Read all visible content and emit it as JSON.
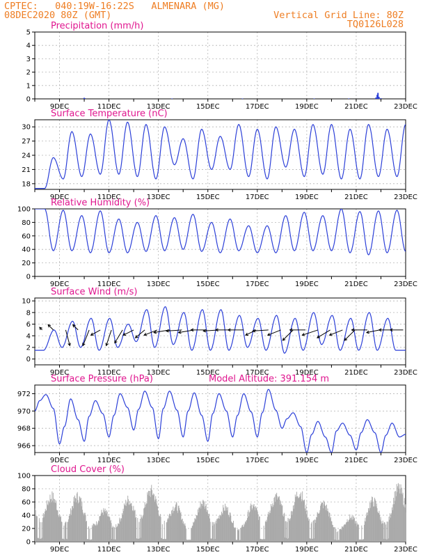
{
  "header": {
    "line1_left": "CPTEC:   040:19W-16:22S   ALMENARA (MG)",
    "line2_left": "08DEC2020 80Z (GMT)",
    "line1_right": "Vertical Grid Line: 80Z",
    "line2_right": "TQ0126L028"
  },
  "colors": {
    "header": "#ee7d22",
    "panel_title": "#e0168f",
    "series": "#2b3fd8",
    "cloud": "#a9a9a9",
    "arrows": "#000000"
  },
  "chart_data": [
    {
      "type": "bar",
      "id": "precip",
      "title": "Precipitation (mm/h)",
      "ylim": [
        0,
        5
      ],
      "yticks": [
        0,
        1,
        2,
        3,
        4,
        5
      ],
      "xlim": [
        8.0,
        23.0
      ],
      "xtick_days": [
        9,
        11,
        13,
        15,
        17,
        19,
        21,
        23
      ],
      "xtick_labels": [
        "9DEC",
        "11DEC",
        "13DEC",
        "15DEC",
        "17DEC",
        "19DEC",
        "21DEC",
        "23DEC"
      ],
      "grid": true,
      "x": [
        10.0,
        10.02,
        13.55,
        16.4,
        19.3,
        20.7,
        21.8,
        21.85,
        21.88,
        21.92,
        22.0
      ],
      "values": [
        0.08,
        0.05,
        0.03,
        0.03,
        0.03,
        0.03,
        0.1,
        0.3,
        0.45,
        0.15,
        0.05
      ]
    },
    {
      "type": "line",
      "id": "temperature",
      "title": "Surface Temperature (nC)",
      "ylim": [
        16.8,
        31.5
      ],
      "yticks": [
        18,
        21,
        24,
        27,
        30
      ],
      "xlim": [
        8.0,
        23.0
      ],
      "xtick_days": [
        9,
        11,
        13,
        15,
        17,
        19,
        21,
        23
      ],
      "xtick_labels": [
        "9DEC",
        "11DEC",
        "13DEC",
        "15DEC",
        "17DEC",
        "19DEC",
        "21DEC",
        "23DEC"
      ],
      "grid": true,
      "daily_max": [
        23.5,
        29,
        28.5,
        31.5,
        31,
        30.5,
        30,
        27.5,
        29.5,
        28,
        30.5,
        29.5,
        30,
        29.5,
        30.5,
        30.5,
        29.5,
        30.5,
        29.5,
        30.5,
        29
      ],
      "daily_min": [
        17,
        19,
        19.5,
        20,
        20,
        19.5,
        19,
        22,
        19,
        21,
        21,
        19.5,
        19,
        21.5,
        19.5,
        20,
        19,
        19,
        19.5,
        19.5,
        20
      ]
    },
    {
      "type": "line",
      "id": "humidity",
      "title": "Relative Humidity (%)",
      "ylim": [
        0,
        100
      ],
      "yticks": [
        0,
        20,
        40,
        60,
        80,
        100
      ],
      "xlim": [
        8.0,
        23.0
      ],
      "xtick_days": [
        9,
        11,
        13,
        15,
        17,
        19,
        21,
        23
      ],
      "xtick_labels": [
        "9DEC",
        "11DEC",
        "13DEC",
        "15DEC",
        "17DEC",
        "19DEC",
        "21DEC",
        "23DEC"
      ],
      "grid": true,
      "daily_max": [
        100,
        98,
        90,
        97,
        85,
        80,
        90,
        87,
        92,
        80,
        85,
        75,
        75,
        90,
        95,
        90,
        100,
        96,
        97,
        98,
        99
      ],
      "daily_min": [
        38,
        38,
        35,
        35,
        35,
        37,
        38,
        40,
        37,
        35,
        38,
        35,
        35,
        38,
        38,
        38,
        35,
        32,
        35,
        37,
        35
      ]
    },
    {
      "type": "line",
      "id": "wind",
      "title": "Surface Wind (m/s)",
      "ylim": [
        -1,
        10.5
      ],
      "yticks": [
        0,
        2,
        4,
        6,
        8,
        10
      ],
      "xlim": [
        8.0,
        23.0
      ],
      "xtick_days": [
        9,
        11,
        13,
        15,
        17,
        19,
        21,
        23
      ],
      "xtick_labels": [
        "9DEC",
        "11DEC",
        "13DEC",
        "15DEC",
        "17DEC",
        "19DEC",
        "21DEC",
        "23DEC"
      ],
      "grid": true,
      "daily_max": [
        5,
        6.5,
        7,
        7,
        6,
        8.5,
        9,
        8,
        8.5,
        8.5,
        7.5,
        7,
        7.5,
        7,
        8,
        7.5,
        7,
        8,
        7,
        8,
        7
      ],
      "daily_min": [
        1.5,
        2,
        2,
        1.5,
        2,
        3,
        2,
        2.5,
        1.5,
        1.5,
        1.5,
        2,
        1.5,
        1,
        1.5,
        2.5,
        1.5,
        1.5,
        1.5,
        1.5,
        1.5
      ],
      "vectors": {
        "x": [
          8.3,
          8.75,
          9.25,
          9.75,
          10.2,
          10.65,
          11.1,
          11.55,
          12.0,
          12.45,
          12.95,
          13.45,
          13.95,
          14.45,
          14.95,
          15.45,
          15.95,
          16.45,
          16.95,
          17.45,
          17.95,
          18.45,
          18.95,
          19.45,
          19.95,
          20.45,
          20.95,
          21.45,
          21.95,
          22.45,
          22.9
        ],
        "u": [
          0.5,
          1.0,
          -0.8,
          1.0,
          1.2,
          1.8,
          1.0,
          1.5,
          2.0,
          1.8,
          2.5,
          3.0,
          3.0,
          3.0,
          3.0,
          3.0,
          3.0,
          3.0,
          2.0,
          3.0,
          2.5,
          2.0,
          3.0,
          3.0,
          2.5,
          2.5,
          2.0,
          3.0,
          2.5,
          2.5,
          2.5
        ],
        "v": [
          0.5,
          1.0,
          -3.0,
          1.0,
          -3.0,
          -1.0,
          -3.0,
          -2.5,
          -1.0,
          -1.5,
          -1.0,
          -0.5,
          -0.2,
          -0.5,
          0.0,
          -0.2,
          0.0,
          0.0,
          -1.0,
          -0.2,
          -1.0,
          -2.0,
          0.0,
          -1.0,
          -1.5,
          -1.0,
          -2.0,
          0.0,
          -0.5,
          0.0,
          0.0
        ]
      }
    },
    {
      "type": "line",
      "id": "pressure",
      "title": "Surface Pressure (hPa)",
      "subtitle": "Model Altitude: 391.154 m",
      "ylim": [
        965.2,
        973.0
      ],
      "yticks": [
        966,
        968,
        970,
        972
      ],
      "xlim": [
        8.0,
        23.0
      ],
      "xtick_days": [
        9,
        11,
        13,
        15,
        17,
        19,
        21,
        23
      ],
      "xtick_labels": [
        "9DEC",
        "11DEC",
        "13DEC",
        "15DEC",
        "17DEC",
        "19DEC",
        "21DEC",
        "23DEC"
      ],
      "grid": true,
      "x": [
        8.0,
        8.2,
        8.45,
        8.75,
        9.0,
        9.2,
        9.45,
        9.75,
        10.0,
        10.2,
        10.45,
        10.75,
        11.0,
        11.2,
        11.45,
        11.75,
        12.0,
        12.2,
        12.45,
        12.75,
        13.0,
        13.2,
        13.45,
        13.75,
        14.0,
        14.2,
        14.45,
        14.75,
        15.0,
        15.2,
        15.45,
        15.75,
        16.0,
        16.2,
        16.45,
        16.75,
        17.0,
        17.2,
        17.45,
        17.75,
        18.0,
        18.2,
        18.45,
        18.75,
        19.0,
        19.2,
        19.45,
        19.75,
        20.0,
        20.2,
        20.45,
        20.75,
        21.0,
        21.2,
        21.45,
        21.75,
        22.0,
        22.2,
        22.45,
        22.75,
        23.0
      ],
      "y": [
        970.0,
        971.2,
        971.9,
        970.3,
        966.2,
        968.2,
        971.4,
        969.0,
        966.5,
        969.4,
        971.2,
        969.7,
        967.0,
        969.5,
        972.0,
        970.4,
        967.8,
        970.2,
        972.3,
        970.4,
        966.8,
        970.3,
        972.3,
        970.1,
        967.0,
        970.0,
        972.1,
        969.5,
        966.5,
        969.7,
        972.0,
        970.0,
        967.0,
        969.5,
        972.0,
        969.9,
        967.0,
        969.8,
        972.5,
        970.1,
        968.0,
        969.1,
        969.8,
        968.2,
        965.2,
        967.3,
        968.8,
        967.0,
        965.2,
        967.7,
        968.6,
        967.2,
        965.5,
        967.5,
        969.0,
        967.5,
        965.2,
        967.2,
        968.6,
        967.0,
        967.3
      ]
    },
    {
      "type": "bar",
      "id": "cloud",
      "title": "Cloud Cover (%)",
      "ylim": [
        0,
        100
      ],
      "yticks": [
        0,
        20,
        40,
        60,
        80,
        100
      ],
      "xlim": [
        8.0,
        23.0
      ],
      "xtick_days": [
        9,
        11,
        13,
        15,
        17,
        19,
        21,
        23
      ],
      "xtick_labels": [
        "9DEC",
        "11DEC",
        "13DEC",
        "15DEC",
        "17DEC",
        "19DEC",
        "21DEC",
        "23DEC"
      ],
      "grid": true,
      "daily_max": [
        93,
        82,
        70,
        75,
        80,
        40,
        65,
        55,
        90,
        88,
        85,
        65,
        55,
        50,
        85,
        60,
        55,
        40,
        80,
        65,
        90,
        88,
        80,
        70,
        55,
        35,
        50,
        75,
        60,
        90,
        92
      ]
    }
  ]
}
